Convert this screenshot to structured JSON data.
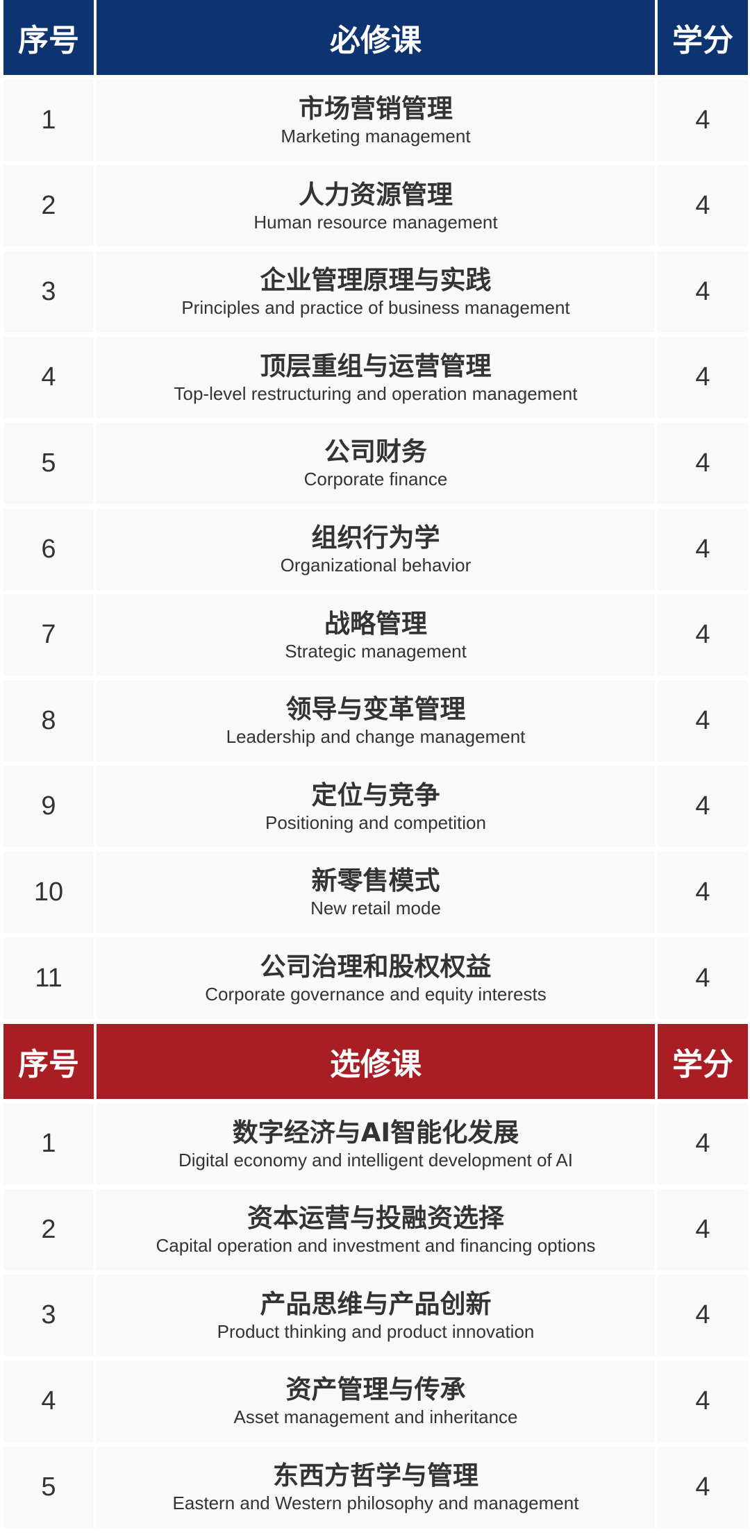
{
  "colors": {
    "required_header": "#0d3370",
    "elective_header": "#a81e24",
    "cell": "#f9f9f9",
    "text": "#333333"
  },
  "required": {
    "headers": {
      "index": "序号",
      "course": "必修课",
      "credit": "学分"
    },
    "rows": [
      {
        "no": "1",
        "zh": "市场营销管理",
        "en": "Marketing management",
        "credit": "4"
      },
      {
        "no": "2",
        "zh": "人力资源管理",
        "en": "Human resource management",
        "credit": "4"
      },
      {
        "no": "3",
        "zh": "企业管理原理与实践",
        "en": "Principles and practice of business management",
        "credit": "4"
      },
      {
        "no": "4",
        "zh": "顶层重组与运营管理",
        "en": "Top-level restructuring and operation management",
        "credit": "4"
      },
      {
        "no": "5",
        "zh": "公司财务",
        "en": "Corporate finance",
        "credit": "4"
      },
      {
        "no": "6",
        "zh": "组织行为学",
        "en": "Organizational behavior",
        "credit": "4"
      },
      {
        "no": "7",
        "zh": "战略管理",
        "en": "Strategic management",
        "credit": "4"
      },
      {
        "no": "8",
        "zh": "领导与变革管理",
        "en": "Leadership and change management",
        "credit": "4"
      },
      {
        "no": "9",
        "zh": "定位与竞争",
        "en": "Positioning and competition",
        "credit": "4"
      },
      {
        "no": "10",
        "zh": "新零售模式",
        "en": "New retail mode",
        "credit": "4"
      },
      {
        "no": "11",
        "zh": "公司治理和股权权益",
        "en": "Corporate governance and equity interests",
        "credit": "4"
      }
    ]
  },
  "elective": {
    "headers": {
      "index": "序号",
      "course": "选修课",
      "credit": "学分"
    },
    "rows": [
      {
        "no": "1",
        "zh": "数字经济与AI智能化发展",
        "en": "Digital economy and intelligent development of AI",
        "credit": "4"
      },
      {
        "no": "2",
        "zh": "资本运营与投融资选择",
        "en": "Capital operation and investment and financing options",
        "credit": "4"
      },
      {
        "no": "3",
        "zh": "产品思维与产品创新",
        "en": "Product thinking and product innovation",
        "credit": "4"
      },
      {
        "no": "4",
        "zh": "资产管理与传承",
        "en": "Asset management and inheritance",
        "credit": "4"
      },
      {
        "no": "5",
        "zh": "东西方哲学与管理",
        "en": "Eastern and Western philosophy and management",
        "credit": "4"
      }
    ]
  }
}
